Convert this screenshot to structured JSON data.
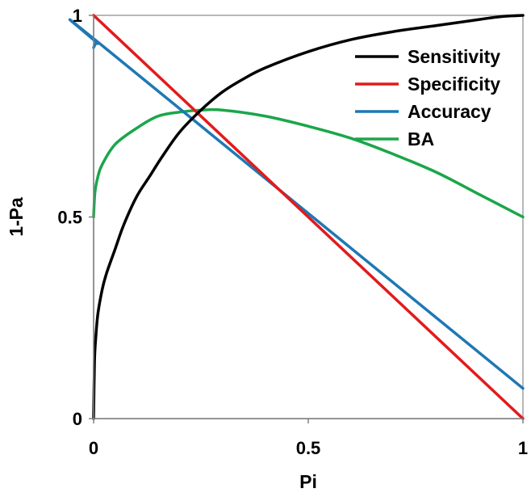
{
  "chart_data": {
    "type": "line",
    "xlabel": "Pi",
    "ylabel": "1-Pa",
    "xlim": [
      0,
      1
    ],
    "ylim": [
      0,
      1
    ],
    "xticks": [
      {
        "value": 0,
        "label": "0"
      },
      {
        "value": 0.5,
        "label": "0.5"
      },
      {
        "value": 1,
        "label": "1"
      }
    ],
    "yticks": [
      {
        "value": 0,
        "label": "0"
      },
      {
        "value": 0.5,
        "label": "0.5"
      },
      {
        "value": 1,
        "label": "1"
      }
    ],
    "grid": false,
    "legend_position": "top-right",
    "series": [
      {
        "name": "Sensitivity",
        "color": "#000000",
        "x": [
          0,
          0.002,
          0.005,
          0.01,
          0.02,
          0.03,
          0.05,
          0.07,
          0.1,
          0.13,
          0.16,
          0.2,
          0.25,
          0.3,
          0.35,
          0.4,
          0.5,
          0.6,
          0.7,
          0.8,
          0.9,
          0.95,
          1.0
        ],
        "values": [
          0,
          0.14,
          0.2,
          0.26,
          0.32,
          0.36,
          0.42,
          0.48,
          0.55,
          0.6,
          0.65,
          0.71,
          0.765,
          0.81,
          0.843,
          0.87,
          0.91,
          0.94,
          0.96,
          0.975,
          0.99,
          0.997,
          1.0
        ]
      },
      {
        "name": "Specificity",
        "color": "#e31a1c",
        "x": [
          0,
          1
        ],
        "values": [
          1.0,
          0.0
        ]
      },
      {
        "name": "Accuracy",
        "color": "#1f78b4",
        "x": [
          0,
          0.005,
          0.01,
          0.02,
          1.0
        ],
        "values": [
          0.92,
          0.93,
          0.93,
          0.925,
          0.075
        ]
      },
      {
        "name": "BA",
        "color": "#1aa64a",
        "x": [
          0,
          0.003,
          0.01,
          0.02,
          0.05,
          0.1,
          0.15,
          0.2,
          0.25,
          0.3,
          0.4,
          0.5,
          0.6,
          0.7,
          0.8,
          0.9,
          1.0
        ],
        "values": [
          0.5,
          0.56,
          0.6,
          0.63,
          0.68,
          0.72,
          0.75,
          0.76,
          0.765,
          0.765,
          0.75,
          0.725,
          0.695,
          0.655,
          0.61,
          0.555,
          0.5
        ]
      }
    ]
  }
}
